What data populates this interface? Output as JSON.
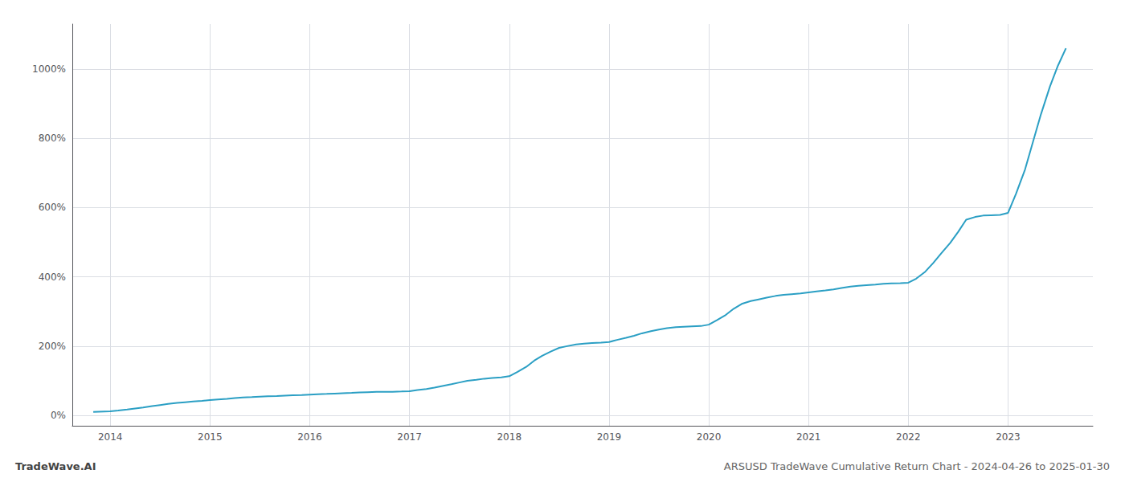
{
  "chart_data": {
    "type": "line",
    "title": "ARSUSD TradeWave Cumulative Return Chart - 2024-04-26 to 2025-01-30",
    "annotations": [
      "TradeWave.AI"
    ],
    "color": "#2b9fc4",
    "grid": true,
    "xlim": [
      2013.62,
      2023.85
    ],
    "xticks": [
      2014,
      2015,
      2016,
      2017,
      2018,
      2019,
      2020,
      2021,
      2022,
      2023
    ],
    "ylim": [
      -30,
      1130
    ],
    "yticks": [
      {
        "value": 0,
        "label": "0%"
      },
      {
        "value": 200,
        "label": "200%"
      },
      {
        "value": 400,
        "label": "400%"
      },
      {
        "value": 600,
        "label": "600%"
      },
      {
        "value": 800,
        "label": "800%"
      },
      {
        "value": 1000,
        "label": "1000%"
      }
    ],
    "x": [
      2013.83,
      2014.0,
      2014.08,
      2014.17,
      2014.25,
      2014.33,
      2014.42,
      2014.5,
      2014.58,
      2014.67,
      2014.75,
      2014.83,
      2014.92,
      2015.0,
      2015.08,
      2015.17,
      2015.25,
      2015.33,
      2015.42,
      2015.5,
      2015.58,
      2015.67,
      2015.75,
      2015.83,
      2015.92,
      2016.0,
      2016.08,
      2016.17,
      2016.25,
      2016.33,
      2016.42,
      2016.5,
      2016.58,
      2016.67,
      2016.75,
      2016.83,
      2016.92,
      2017.0,
      2017.08,
      2017.17,
      2017.25,
      2017.33,
      2017.42,
      2017.5,
      2017.58,
      2017.67,
      2017.75,
      2017.83,
      2017.92,
      2018.0,
      2018.08,
      2018.17,
      2018.25,
      2018.33,
      2018.42,
      2018.5,
      2018.58,
      2018.67,
      2018.75,
      2018.83,
      2018.92,
      2019.0,
      2019.08,
      2019.17,
      2019.25,
      2019.33,
      2019.42,
      2019.5,
      2019.58,
      2019.67,
      2019.75,
      2019.83,
      2019.92,
      2020.0,
      2020.08,
      2020.17,
      2020.25,
      2020.33,
      2020.42,
      2020.5,
      2020.58,
      2020.67,
      2020.75,
      2020.83,
      2020.92,
      2021.0,
      2021.08,
      2021.17,
      2021.25,
      2021.33,
      2021.42,
      2021.5,
      2021.58,
      2021.67,
      2021.75,
      2021.83,
      2021.92,
      2022.0,
      2022.08,
      2022.17,
      2022.25,
      2022.33,
      2022.42,
      2022.5,
      2022.58,
      2022.67,
      2022.75,
      2022.83,
      2022.92,
      2023.0,
      2023.08,
      2023.17,
      2023.25,
      2023.33,
      2023.42,
      2023.5,
      2023.58
    ],
    "values": [
      10,
      12,
      14,
      17,
      20,
      23,
      27,
      30,
      33,
      36,
      38,
      40,
      42,
      44,
      46,
      48,
      50,
      52,
      53,
      54,
      55,
      56,
      57,
      58,
      59,
      60,
      61,
      62,
      63,
      64,
      65,
      66,
      67,
      68,
      68,
      68,
      69,
      70,
      73,
      76,
      80,
      85,
      90,
      95,
      100,
      103,
      106,
      108,
      110,
      113,
      125,
      140,
      158,
      172,
      185,
      195,
      200,
      205,
      207,
      209,
      210,
      212,
      218,
      224,
      230,
      237,
      243,
      248,
      252,
      255,
      256,
      257,
      258,
      262,
      275,
      290,
      308,
      322,
      330,
      335,
      340,
      345,
      348,
      350,
      352,
      355,
      358,
      361,
      364,
      368,
      372,
      374,
      376,
      378,
      380,
      381,
      382,
      383,
      395,
      415,
      440,
      468,
      498,
      530,
      565,
      573,
      577,
      578,
      579,
      585,
      640,
      710,
      790,
      870,
      950,
      1010,
      1060
    ]
  }
}
